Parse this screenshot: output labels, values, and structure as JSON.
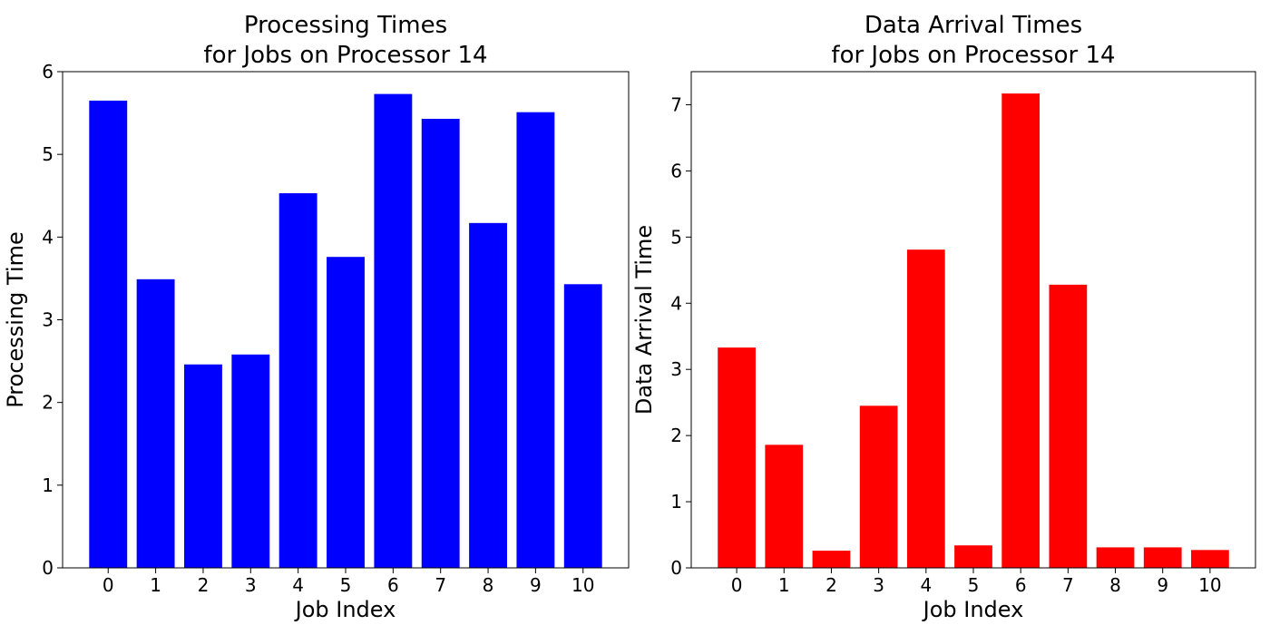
{
  "chart_data": [
    {
      "type": "bar",
      "title": "Processing Times\nfor Jobs on Processor 14",
      "xlabel": "Job Index",
      "ylabel": "Processing Time",
      "categories": [
        "0",
        "1",
        "2",
        "3",
        "4",
        "5",
        "6",
        "7",
        "8",
        "9",
        "10"
      ],
      "values": [
        5.65,
        3.49,
        2.46,
        2.58,
        4.53,
        3.76,
        5.73,
        5.43,
        4.17,
        5.51,
        3.43
      ],
      "ylim": [
        0,
        6
      ],
      "yticks": [
        0,
        1,
        2,
        3,
        4,
        5,
        6
      ],
      "color": "#0000ff",
      "grid": false,
      "legend": "none"
    },
    {
      "type": "bar",
      "title": "Data Arrival Times\nfor Jobs on Processor 14",
      "xlabel": "Job Index",
      "ylabel": "Data Arrival Time",
      "categories": [
        "0",
        "1",
        "2",
        "3",
        "4",
        "5",
        "6",
        "7",
        "8",
        "9",
        "10"
      ],
      "values": [
        3.33,
        1.86,
        0.26,
        2.45,
        4.81,
        0.34,
        7.17,
        4.28,
        0.31,
        0.31,
        0.27
      ],
      "ylim": [
        0,
        7.5
      ],
      "yticks": [
        0,
        1,
        2,
        3,
        4,
        5,
        6,
        7
      ],
      "color": "#ff0000",
      "grid": false,
      "legend": "none"
    }
  ]
}
